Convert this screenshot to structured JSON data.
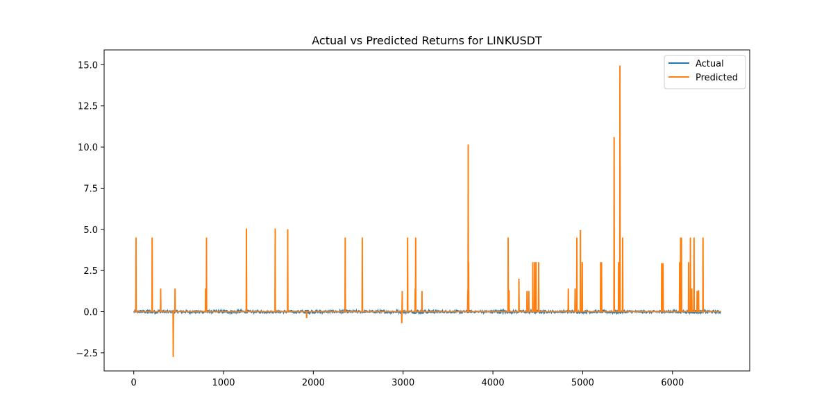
{
  "chart_data": {
    "type": "line",
    "title": "Actual vs Predicted Returns for LINKUSDT",
    "xlabel": "",
    "ylabel": "",
    "xlim": [
      -330,
      6860
    ],
    "ylim": [
      -3.6,
      15.9
    ],
    "xticks": [
      0,
      1000,
      2000,
      3000,
      4000,
      5000,
      6000
    ],
    "xtick_labels": [
      "0",
      "1000",
      "2000",
      "3000",
      "4000",
      "5000",
      "6000"
    ],
    "yticks": [
      -2.5,
      0.0,
      2.5,
      5.0,
      7.5,
      10.0,
      12.5,
      15.0
    ],
    "ytick_labels": [
      "−2.5",
      "0.0",
      "2.5",
      "5.0",
      "7.5",
      "10.0",
      "12.5",
      "15.0"
    ],
    "grid": false,
    "legend_position": "top-right",
    "series": [
      {
        "name": "Actual",
        "color": "#1f77b4",
        "x_range": [
          0,
          6540
        ],
        "noise_amplitude": 0.12
      },
      {
        "name": "Predicted",
        "color": "#ff7f0e",
        "x_range": [
          0,
          6540
        ],
        "spikes": [
          {
            "x": 25,
            "y": 4.5
          },
          {
            "x": 205,
            "y": 4.5
          },
          {
            "x": 300,
            "y": 1.4
          },
          {
            "x": 440,
            "y": -2.75
          },
          {
            "x": 460,
            "y": 1.4
          },
          {
            "x": 800,
            "y": 1.4
          },
          {
            "x": 810,
            "y": 4.5
          },
          {
            "x": 1255,
            "y": 5.05
          },
          {
            "x": 1575,
            "y": 5.05
          },
          {
            "x": 1715,
            "y": 5.0
          },
          {
            "x": 1925,
            "y": -0.4
          },
          {
            "x": 2355,
            "y": 4.5
          },
          {
            "x": 2545,
            "y": 4.5
          },
          {
            "x": 2990,
            "y": 1.25
          },
          {
            "x": 2985,
            "y": -0.7
          },
          {
            "x": 3050,
            "y": 4.5
          },
          {
            "x": 3140,
            "y": 4.5
          },
          {
            "x": 3135,
            "y": 1.4
          },
          {
            "x": 3210,
            "y": 1.25
          },
          {
            "x": 3720,
            "y": 1.3
          },
          {
            "x": 3725,
            "y": 10.15
          },
          {
            "x": 3730,
            "y": 3.0
          },
          {
            "x": 4170,
            "y": 4.5
          },
          {
            "x": 4180,
            "y": 1.3
          },
          {
            "x": 4290,
            "y": 2.0
          },
          {
            "x": 4380,
            "y": 1.25
          },
          {
            "x": 4400,
            "y": 1.25
          },
          {
            "x": 4445,
            "y": 3.0
          },
          {
            "x": 4465,
            "y": 3.0
          },
          {
            "x": 4480,
            "y": 3.0
          },
          {
            "x": 4510,
            "y": 3.0
          },
          {
            "x": 4840,
            "y": 1.4
          },
          {
            "x": 4915,
            "y": 1.4
          },
          {
            "x": 4935,
            "y": 4.5
          },
          {
            "x": 4975,
            "y": 4.95
          },
          {
            "x": 4995,
            "y": 3.0
          },
          {
            "x": 5200,
            "y": 3.0
          },
          {
            "x": 5210,
            "y": 3.0
          },
          {
            "x": 5350,
            "y": 10.6
          },
          {
            "x": 5400,
            "y": 3.0
          },
          {
            "x": 5415,
            "y": 14.95
          },
          {
            "x": 5445,
            "y": 4.5
          },
          {
            "x": 5880,
            "y": 2.95
          },
          {
            "x": 5895,
            "y": 2.95
          },
          {
            "x": 6080,
            "y": 3.0
          },
          {
            "x": 6090,
            "y": 4.5
          },
          {
            "x": 6100,
            "y": 4.5
          },
          {
            "x": 6180,
            "y": 3.0
          },
          {
            "x": 6200,
            "y": 4.5
          },
          {
            "x": 6215,
            "y": 1.4
          },
          {
            "x": 6240,
            "y": 4.5
          },
          {
            "x": 6275,
            "y": 1.25
          },
          {
            "x": 6290,
            "y": 1.3
          },
          {
            "x": 6340,
            "y": 4.5
          }
        ]
      }
    ]
  }
}
